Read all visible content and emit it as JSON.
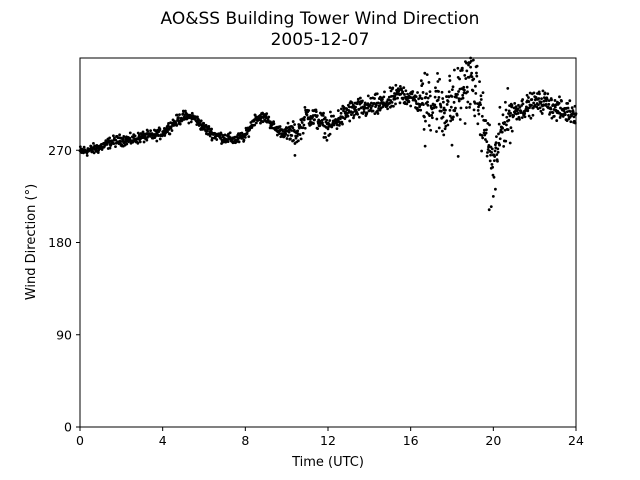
{
  "chart_data": {
    "type": "scatter",
    "title": "AO&SS Building Tower Wind Direction",
    "subtitle": "2005-12-07",
    "xlabel": "Time (UTC)",
    "ylabel": "Wind Direction (°)",
    "xlim": [
      0,
      24
    ],
    "ylim": [
      0,
      360
    ],
    "xticks": [
      0,
      4,
      8,
      12,
      16,
      20,
      24
    ],
    "yticks": [
      0,
      90,
      180,
      270
    ],
    "xtick_labels": [
      "0",
      "4",
      "8",
      "12",
      "16",
      "20",
      "24"
    ],
    "ytick_labels": [
      "0",
      "90",
      "180",
      "270"
    ],
    "grid": false,
    "marker_color": "#000000",
    "trend": [
      [
        0,
        269
      ],
      [
        0.5,
        270
      ],
      [
        1,
        273
      ],
      [
        1.5,
        278
      ],
      [
        2,
        280
      ],
      [
        2.5,
        280
      ],
      [
        3,
        283
      ],
      [
        3.5,
        284
      ],
      [
        4,
        287
      ],
      [
        4.5,
        296
      ],
      [
        5,
        303
      ],
      [
        5.5,
        302
      ],
      [
        6,
        292
      ],
      [
        6.5,
        285
      ],
      [
        7,
        282
      ],
      [
        7.5,
        280
      ],
      [
        8,
        284
      ],
      [
        8.5,
        302
      ],
      [
        9,
        302
      ],
      [
        9.5,
        290
      ],
      [
        10,
        287
      ],
      [
        10.5,
        286
      ],
      [
        11,
        305
      ],
      [
        11.5,
        300
      ],
      [
        12,
        292
      ],
      [
        12.5,
        300
      ],
      [
        13,
        308
      ],
      [
        13.5,
        310
      ],
      [
        14,
        312
      ],
      [
        14.5,
        314
      ],
      [
        15,
        318
      ],
      [
        15.5,
        325
      ],
      [
        16,
        322
      ],
      [
        16.5,
        315
      ],
      [
        17,
        318
      ],
      [
        17.5,
        312
      ],
      [
        18,
        314
      ],
      [
        18.5,
        330
      ],
      [
        19,
        338
      ],
      [
        19.5,
        298
      ],
      [
        20,
        255
      ],
      [
        20.5,
        298
      ],
      [
        21,
        308
      ],
      [
        21.5,
        312
      ],
      [
        22,
        316
      ],
      [
        22.5,
        318
      ],
      [
        23,
        310
      ],
      [
        23.5,
        308
      ],
      [
        24,
        307
      ]
    ],
    "scatter_bands": [
      {
        "from": 0,
        "to": 10,
        "spread": 4
      },
      {
        "from": 10,
        "to": 15.5,
        "spread": 8
      },
      {
        "from": 15.5,
        "to": 16.5,
        "spread": 8
      },
      {
        "from": 16.5,
        "to": 19.5,
        "spread": 22
      },
      {
        "from": 19.5,
        "to": 21,
        "spread": 18
      },
      {
        "from": 21,
        "to": 24,
        "spread": 8
      }
    ],
    "samples_per_hour": 60,
    "outliers": [
      [
        10.4,
        265
      ],
      [
        16.7,
        274
      ],
      [
        17.3,
        345
      ],
      [
        17.6,
        285
      ],
      [
        18.0,
        275
      ],
      [
        18.3,
        264
      ],
      [
        18.7,
        355
      ],
      [
        18.9,
        360
      ],
      [
        19.8,
        212
      ],
      [
        19.9,
        215
      ],
      [
        20.0,
        225
      ],
      [
        20.1,
        232
      ],
      [
        20.3,
        275
      ],
      [
        17.9,
        338
      ],
      [
        18.5,
        348
      ]
    ]
  }
}
